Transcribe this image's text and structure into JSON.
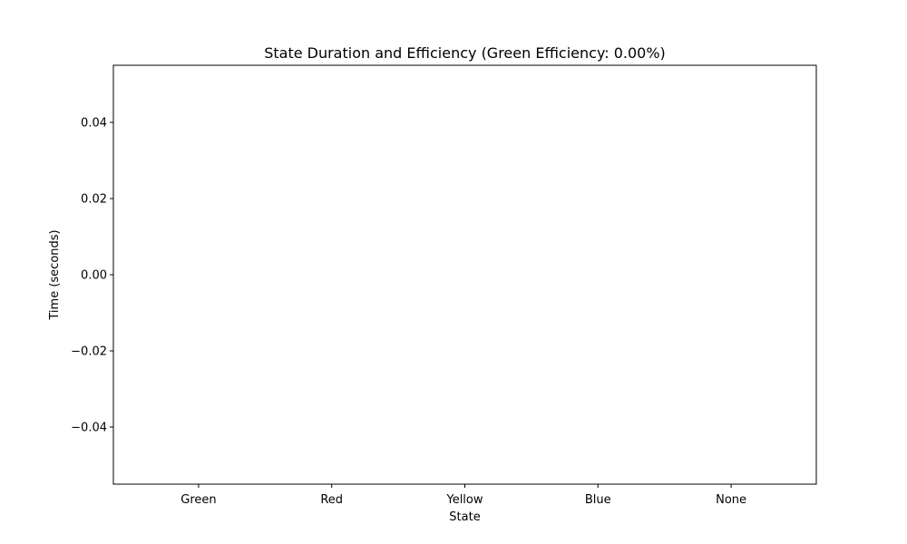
{
  "chart_data": {
    "type": "bar",
    "title": "State Duration and Efficiency (Green Efficiency: 0.00%)",
    "xlabel": "State",
    "ylabel": "Time (seconds)",
    "categories": [
      "Green",
      "Red",
      "Yellow",
      "Blue",
      "None"
    ],
    "values": [
      0,
      0,
      0,
      0,
      0
    ],
    "ylim": [
      -0.055,
      0.055
    ],
    "yticks": [
      {
        "value": -0.04,
        "label": "−0.04"
      },
      {
        "value": -0.02,
        "label": "−0.02"
      },
      {
        "value": 0.0,
        "label": "0.00"
      },
      {
        "value": 0.02,
        "label": "0.02"
      },
      {
        "value": 0.04,
        "label": "0.04"
      }
    ],
    "grid": false,
    "legend": "none"
  }
}
